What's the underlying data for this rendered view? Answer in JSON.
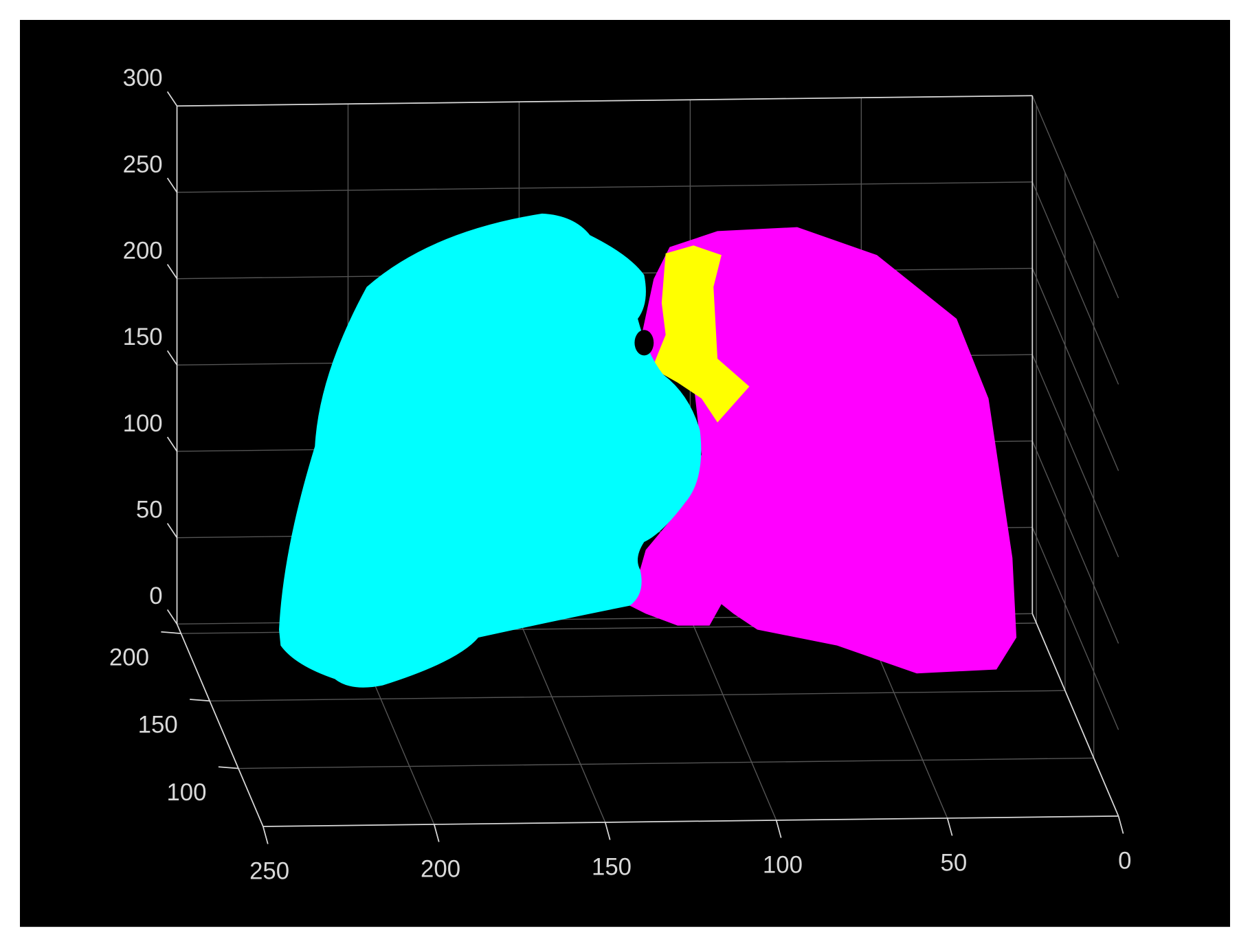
{
  "chart_data": {
    "type": "scatter3d",
    "xlim": [
      0,
      250
    ],
    "xticks": [
      0,
      50,
      100,
      150,
      200,
      250
    ],
    "x_reversed": true,
    "ylim": [
      57,
      207
    ],
    "yticks": [
      100,
      150,
      200
    ],
    "zlim": [
      0,
      300
    ],
    "zticks": [
      0,
      50,
      100,
      150,
      200,
      250,
      300
    ],
    "grid": true,
    "background": "#000000",
    "axis_color": "#d9d9d9"
  }
}
